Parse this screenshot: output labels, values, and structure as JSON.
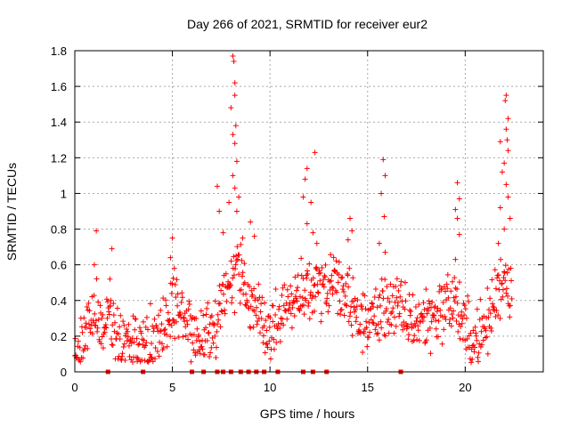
{
  "chart_data": {
    "type": "scatter",
    "title": "Day 266 of 2021, SRMTID for receiver eur2",
    "xlabel": "GPS time / hours",
    "ylabel": "SRMTID / TECUs",
    "xlim": [
      0,
      24
    ],
    "ylim": [
      0,
      1.8
    ],
    "x_ticks": [
      0,
      5,
      10,
      15,
      20
    ],
    "y_ticks": [
      0,
      0.2,
      0.4,
      0.6,
      0.8,
      1,
      1.2,
      1.4,
      1.6,
      1.8
    ],
    "x_tick_labels": [
      "0",
      "5",
      "10",
      "15",
      "20"
    ],
    "y_tick_labels": [
      "0",
      "0.2",
      "0.4",
      "0.6",
      "0.8",
      "1",
      "1.2",
      "1.4",
      "1.6",
      "1.8"
    ],
    "grid": true,
    "color": "#ff0000",
    "marker": "plus",
    "trend": [
      [
        0.0,
        0.12
      ],
      [
        0.3,
        0.18
      ],
      [
        0.6,
        0.28
      ],
      [
        1.0,
        0.32
      ],
      [
        1.4,
        0.26
      ],
      [
        1.8,
        0.3
      ],
      [
        2.2,
        0.2
      ],
      [
        2.6,
        0.14
      ],
      [
        3.0,
        0.12
      ],
      [
        3.5,
        0.15
      ],
      [
        4.0,
        0.14
      ],
      [
        4.5,
        0.25
      ],
      [
        5.0,
        0.38
      ],
      [
        5.5,
        0.3
      ],
      [
        6.0,
        0.22
      ],
      [
        6.5,
        0.2
      ],
      [
        7.0,
        0.18
      ],
      [
        7.5,
        0.35
      ],
      [
        8.0,
        0.55
      ],
      [
        8.5,
        0.62
      ],
      [
        9.0,
        0.38
      ],
      [
        9.5,
        0.3
      ],
      [
        10.0,
        0.22
      ],
      [
        10.5,
        0.33
      ],
      [
        11.0,
        0.38
      ],
      [
        11.5,
        0.4
      ],
      [
        12.0,
        0.5
      ],
      [
        12.5,
        0.45
      ],
      [
        13.0,
        0.48
      ],
      [
        13.5,
        0.45
      ],
      [
        14.0,
        0.4
      ],
      [
        14.5,
        0.3
      ],
      [
        15.0,
        0.28
      ],
      [
        15.5,
        0.32
      ],
      [
        16.0,
        0.38
      ],
      [
        16.5,
        0.35
      ],
      [
        17.0,
        0.3
      ],
      [
        17.5,
        0.28
      ],
      [
        18.0,
        0.3
      ],
      [
        18.5,
        0.33
      ],
      [
        19.0,
        0.38
      ],
      [
        19.5,
        0.4
      ],
      [
        20.0,
        0.22
      ],
      [
        20.5,
        0.18
      ],
      [
        21.0,
        0.22
      ],
      [
        21.5,
        0.4
      ],
      [
        22.0,
        0.55
      ],
      [
        22.4,
        0.45
      ]
    ],
    "noise": 0.09,
    "bursts": [
      {
        "x": 1.1,
        "y": 0.79
      },
      {
        "x": 1.0,
        "y": 0.6
      },
      {
        "x": 1.9,
        "y": 0.69
      },
      {
        "x": 1.8,
        "y": 0.52
      },
      {
        "x": 5.0,
        "y": 0.75
      },
      {
        "x": 4.9,
        "y": 0.64
      },
      {
        "x": 5.1,
        "y": 0.58
      },
      {
        "x": 7.3,
        "y": 1.04
      },
      {
        "x": 7.4,
        "y": 0.9
      },
      {
        "x": 7.6,
        "y": 0.78
      },
      {
        "x": 7.9,
        "y": 0.95
      },
      {
        "x": 8.1,
        "y": 1.77
      },
      {
        "x": 8.15,
        "y": 1.74
      },
      {
        "x": 8.2,
        "y": 1.62
      },
      {
        "x": 8.2,
        "y": 1.55
      },
      {
        "x": 8.0,
        "y": 1.48
      },
      {
        "x": 8.25,
        "y": 1.38
      },
      {
        "x": 8.1,
        "y": 1.33
      },
      {
        "x": 8.2,
        "y": 1.28
      },
      {
        "x": 8.3,
        "y": 1.18
      },
      {
        "x": 8.1,
        "y": 1.1
      },
      {
        "x": 8.2,
        "y": 1.03
      },
      {
        "x": 8.4,
        "y": 0.98
      },
      {
        "x": 8.3,
        "y": 0.9
      },
      {
        "x": 8.6,
        "y": 0.75
      },
      {
        "x": 9.0,
        "y": 0.84
      },
      {
        "x": 9.2,
        "y": 0.76
      },
      {
        "x": 11.9,
        "y": 1.14
      },
      {
        "x": 11.8,
        "y": 1.08
      },
      {
        "x": 11.7,
        "y": 0.98
      },
      {
        "x": 11.9,
        "y": 0.83
      },
      {
        "x": 12.1,
        "y": 0.95
      },
      {
        "x": 12.3,
        "y": 1.23
      },
      {
        "x": 12.2,
        "y": 0.78
      },
      {
        "x": 12.4,
        "y": 0.72
      },
      {
        "x": 14.1,
        "y": 0.86
      },
      {
        "x": 14.2,
        "y": 0.79
      },
      {
        "x": 14.0,
        "y": 0.74
      },
      {
        "x": 15.8,
        "y": 1.19
      },
      {
        "x": 15.9,
        "y": 1.1
      },
      {
        "x": 15.7,
        "y": 1.0
      },
      {
        "x": 15.85,
        "y": 0.87
      },
      {
        "x": 15.6,
        "y": 0.72
      },
      {
        "x": 15.9,
        "y": 0.67
      },
      {
        "x": 19.6,
        "y": 1.06
      },
      {
        "x": 19.7,
        "y": 0.97
      },
      {
        "x": 19.5,
        "y": 0.91
      },
      {
        "x": 19.6,
        "y": 0.86
      },
      {
        "x": 19.7,
        "y": 0.77
      },
      {
        "x": 19.5,
        "y": 0.63
      },
      {
        "x": 22.1,
        "y": 1.55
      },
      {
        "x": 22.05,
        "y": 1.52
      },
      {
        "x": 22.2,
        "y": 1.42
      },
      {
        "x": 22.1,
        "y": 1.36
      },
      {
        "x": 22.15,
        "y": 1.3
      },
      {
        "x": 21.8,
        "y": 1.29
      },
      {
        "x": 22.2,
        "y": 1.24
      },
      {
        "x": 22.0,
        "y": 1.17
      },
      {
        "x": 21.9,
        "y": 1.12
      },
      {
        "x": 22.1,
        "y": 1.05
      },
      {
        "x": 22.2,
        "y": 0.98
      },
      {
        "x": 21.8,
        "y": 0.92
      },
      {
        "x": 22.3,
        "y": 0.86
      },
      {
        "x": 22.0,
        "y": 0.8
      },
      {
        "x": 21.7,
        "y": 0.72
      }
    ],
    "gap_markers_x": [
      1.7,
      3.5,
      6.0,
      6.6,
      7.3,
      7.6,
      8.0,
      8.5,
      8.9,
      9.3,
      9.7,
      10.4,
      11.7,
      12.2,
      12.9,
      16.7
    ]
  }
}
